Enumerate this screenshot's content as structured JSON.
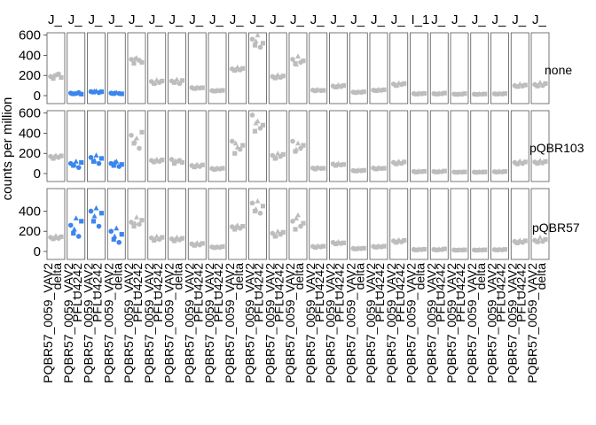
{
  "chart_data": {
    "type": "scatter",
    "ylabel": "counts per million",
    "ylim": [
      0,
      650
    ],
    "yticks": [
      0,
      200,
      400,
      600
    ],
    "rows": [
      "none",
      "pQBR103",
      "pQBR57"
    ],
    "column_strips": [
      "J_",
      "J_",
      "J_",
      "J_",
      "J_",
      "J_",
      "J_",
      "J_",
      "J_",
      "J_",
      "J_",
      "J_",
      "J_",
      "J_",
      "J_",
      "J_",
      "J_",
      "J_",
      "I_1",
      "J_",
      "J_",
      "J_",
      "J_",
      "J_",
      "J_"
    ],
    "x_tick_labels": [
      [
        "PQBR57_0059_VAV2",
        "delta"
      ],
      [
        "PQBR57_0059_VAV2",
        "PFLU4242"
      ],
      [
        "PQBR57_0059_VAV2",
        "PFLU4242"
      ],
      [
        "PQBR57_0059_VAV2",
        "delta"
      ],
      [
        "PQBR57_0059_VAV2",
        "PFLU4242"
      ],
      [
        "PQBR57_0059_VAV2",
        "PFLU4242"
      ],
      [
        "PQBR57_0059_VAV2",
        "delta"
      ],
      [
        "PQBR57_0059_VAV2",
        "PFLU4242"
      ],
      [
        "PQBR57_0059_VAV2",
        "PFLU4242"
      ],
      [
        "PQBR57_0059_VAV2",
        "delta"
      ],
      [
        "PQBR57_0059_VAV2",
        "PFLU4242"
      ],
      [
        "PQBR57_0059_VAV2",
        "PFLU4242"
      ],
      [
        "PQBR57_0059_VAV2",
        "delta"
      ],
      [
        "PQBR57_0059_VAV2",
        "PFLU4242"
      ],
      [
        "PQBR57_0059_VAV2",
        "PFLU4242"
      ],
      [
        "PQBR57_0059_VAV2",
        "delta"
      ],
      [
        "PQBR57_0059_VAV2",
        "PFLU4242"
      ],
      [
        "PQBR57_0059_VAV2",
        "PFLU4242"
      ],
      [
        "PQBR57_0059_VAV2",
        "delta"
      ],
      [
        "PQBR57_0059_VAV2",
        "PFLU4242"
      ],
      [
        "PQBR57_0059_VAV2",
        "PFLU4242"
      ],
      [
        "PQBR57_0059_VAV2",
        "delta"
      ],
      [
        "PQBR57_0059_VAV2",
        "PFLU4242"
      ],
      [
        "PQBR57_0059_VAV2",
        "PFLU4242"
      ],
      [
        "PQBR57_0059_VAV2",
        "delta"
      ]
    ],
    "grid": false,
    "colors": {
      "highlight": "#3a86ee",
      "other": "#bdbdbd"
    },
    "panel_values": {
      "none": [
        [
          190,
          170,
          205,
          215,
          180,
          200
        ],
        [
          25,
          18,
          22,
          30,
          15,
          20
        ],
        [
          40,
          35,
          45,
          30,
          38,
          42
        ],
        [
          25,
          20,
          30,
          22,
          18,
          28
        ],
        [
          360,
          320,
          375,
          350,
          330,
          365
        ],
        [
          140,
          120,
          155,
          130,
          145,
          125
        ],
        [
          145,
          130,
          160,
          120,
          150,
          140
        ],
        [
          80,
          70,
          85,
          75,
          78,
          72
        ],
        [
          50,
          45,
          55,
          48,
          52,
          46
        ],
        [
          265,
          250,
          280,
          255,
          270,
          260
        ],
        [
          560,
          500,
          600,
          480,
          520,
          540
        ],
        [
          190,
          175,
          205,
          180,
          195,
          185
        ],
        [
          360,
          320,
          390,
          330,
          345,
          310
        ],
        [
          55,
          48,
          60,
          50,
          52,
          58
        ],
        [
          95,
          85,
          105,
          90,
          100,
          88
        ],
        [
          35,
          30,
          40,
          32,
          38,
          34
        ],
        [
          55,
          50,
          62,
          52,
          58,
          48
        ],
        [
          115,
          100,
          125,
          110,
          120,
          105
        ],
        [
          20,
          15,
          25,
          18,
          22,
          16
        ],
        [
          20,
          15,
          22,
          18,
          25,
          16
        ],
        [
          15,
          12,
          18,
          14,
          20,
          13
        ],
        [
          15,
          12,
          18,
          14,
          16,
          13
        ],
        [
          18,
          15,
          22,
          16,
          20,
          17
        ],
        [
          100,
          90,
          115,
          95,
          105,
          92
        ],
        [
          110,
          95,
          130,
          100,
          120,
          105
        ]
      ],
      "pQBR103": [
        [
          170,
          150,
          180,
          160,
          175,
          165
        ],
        [
          100,
          80,
          120,
          60,
          110,
          90
        ],
        [
          160,
          120,
          180,
          100,
          150,
          130
        ],
        [
          100,
          80,
          120,
          70,
          90,
          110
        ],
        [
          380,
          300,
          350,
          250,
          410,
          320
        ],
        [
          130,
          115,
          140,
          120,
          135,
          125
        ],
        [
          140,
          100,
          120,
          130,
          110,
          125
        ],
        [
          80,
          65,
          90,
          70,
          85,
          75
        ],
        [
          50,
          40,
          55,
          45,
          52,
          48
        ],
        [
          320,
          200,
          260,
          240,
          280,
          300
        ],
        [
          580,
          420,
          520,
          450,
          480,
          500
        ],
        [
          180,
          150,
          200,
          170,
          190,
          160
        ],
        [
          320,
          220,
          300,
          250,
          280,
          240
        ],
        [
          55,
          45,
          60,
          50,
          52,
          58
        ],
        [
          95,
          80,
          100,
          85,
          90,
          88
        ],
        [
          30,
          25,
          35,
          28,
          32,
          27
        ],
        [
          55,
          45,
          60,
          50,
          52,
          48
        ],
        [
          110,
          95,
          120,
          100,
          115,
          105
        ],
        [
          20,
          15,
          25,
          18,
          22,
          16
        ],
        [
          20,
          15,
          22,
          18,
          25,
          16
        ],
        [
          15,
          12,
          18,
          14,
          16,
          13
        ],
        [
          15,
          12,
          18,
          14,
          16,
          13
        ],
        [
          18,
          15,
          22,
          16,
          20,
          17
        ],
        [
          110,
          95,
          125,
          100,
          115,
          105
        ],
        [
          115,
          100,
          130,
          105,
          120,
          110
        ]
      ],
      "pQBR57": [
        [
          140,
          125,
          155,
          130,
          145,
          135
        ],
        [
          260,
          180,
          330,
          150,
          300,
          220
        ],
        [
          400,
          300,
          430,
          250,
          380,
          350
        ],
        [
          200,
          120,
          230,
          90,
          170,
          150
        ],
        [
          290,
          250,
          340,
          270,
          310,
          280
        ],
        [
          135,
          110,
          150,
          120,
          140,
          125
        ],
        [
          125,
          105,
          140,
          115,
          130,
          120
        ],
        [
          75,
          60,
          85,
          65,
          80,
          70
        ],
        [
          45,
          38,
          50,
          40,
          48,
          42
        ],
        [
          245,
          220,
          260,
          230,
          250,
          240
        ],
        [
          480,
          400,
          500,
          380,
          450,
          420
        ],
        [
          180,
          150,
          200,
          170,
          190,
          160
        ],
        [
          300,
          220,
          360,
          250,
          280,
          330
        ],
        [
          50,
          40,
          55,
          45,
          52,
          48
        ],
        [
          90,
          75,
          95,
          80,
          85,
          82
        ],
        [
          30,
          25,
          35,
          28,
          32,
          27
        ],
        [
          50,
          42,
          55,
          45,
          52,
          48
        ],
        [
          105,
          90,
          115,
          95,
          110,
          100
        ],
        [
          20,
          15,
          25,
          18,
          22,
          16
        ],
        [
          20,
          15,
          22,
          18,
          25,
          16
        ],
        [
          15,
          12,
          18,
          14,
          16,
          13
        ],
        [
          15,
          12,
          18,
          14,
          16,
          13
        ],
        [
          18,
          15,
          22,
          16,
          20,
          17
        ],
        [
          100,
          85,
          110,
          90,
          105,
          95
        ],
        [
          110,
          95,
          140,
          100,
          120,
          105
        ]
      ]
    },
    "highlighted_panels": {
      "none": [
        1,
        2,
        3
      ],
      "pQBR103": [
        1,
        2,
        3
      ],
      "pQBR57": [
        1,
        2,
        3
      ]
    }
  }
}
